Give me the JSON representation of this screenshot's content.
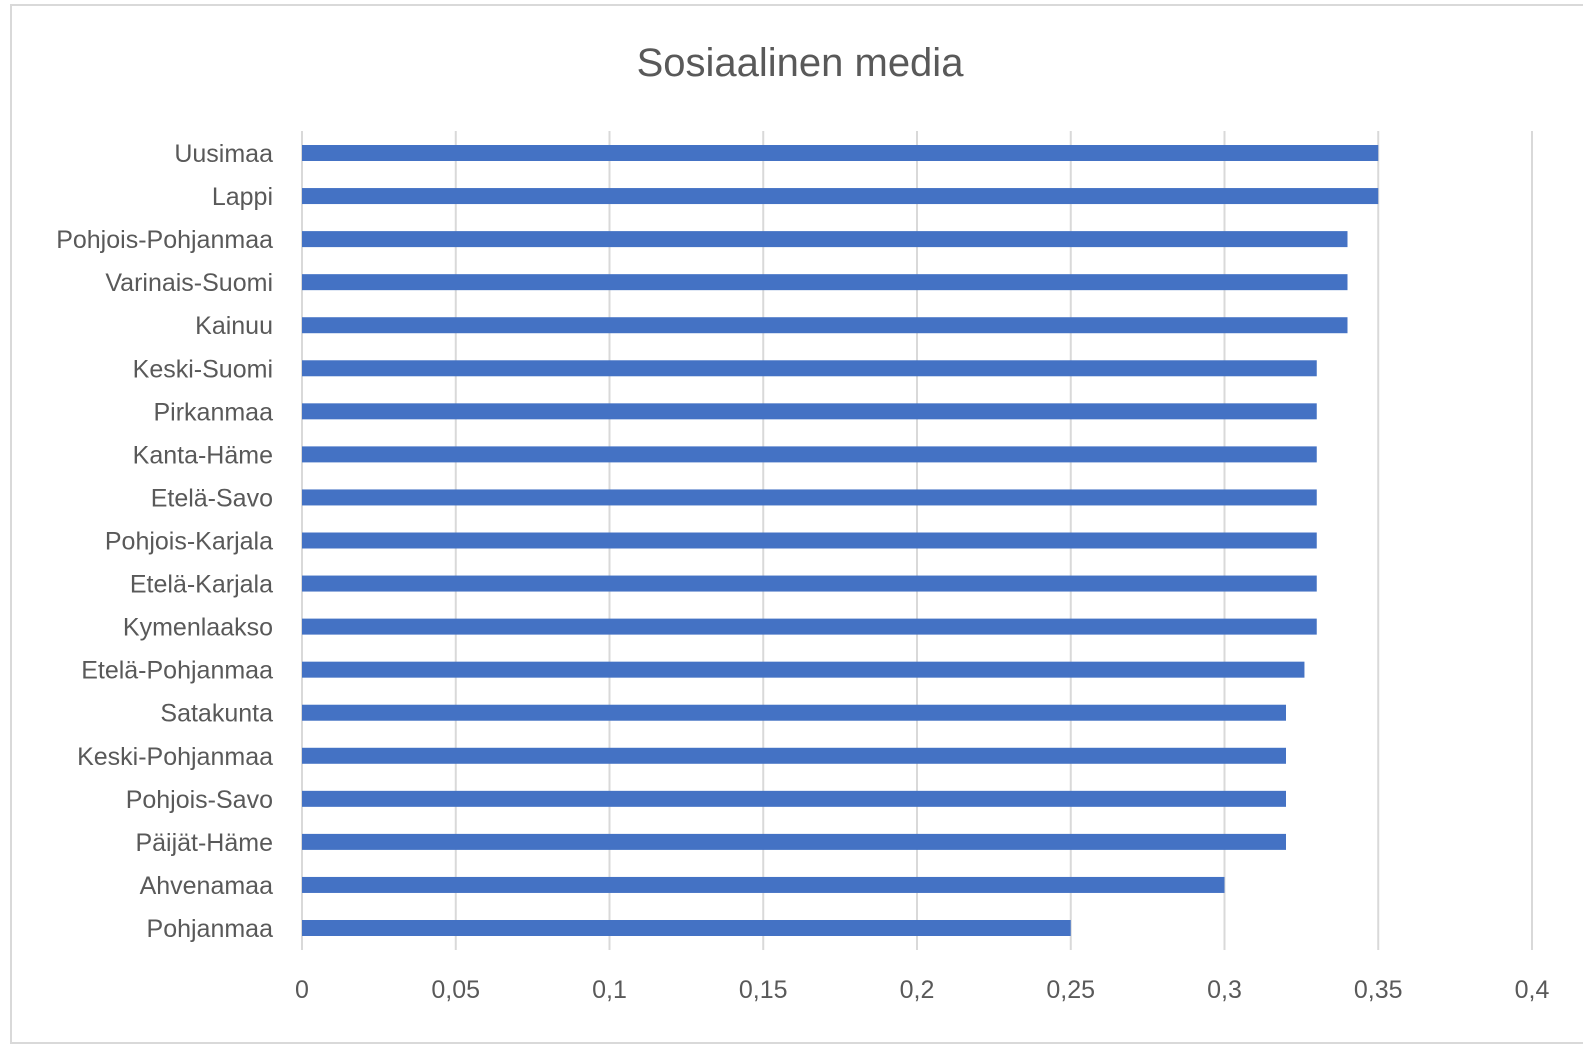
{
  "chart_data": {
    "type": "bar",
    "orientation": "horizontal",
    "title": "Sosiaalinen media",
    "xlabel": "",
    "ylabel": "",
    "categories": [
      "Uusimaa",
      "Lappi",
      "Pohjois-Pohjanmaa",
      "Varinais-Suomi",
      "Kainuu",
      "Keski-Suomi",
      "Pirkanmaa",
      "Kanta-Häme",
      "Etelä-Savo",
      "Pohjois-Karjala",
      "Etelä-Karjala",
      "Kymenlaakso",
      "Etelä-Pohjanmaa",
      "Satakunta",
      "Keski-Pohjanmaa",
      "Pohjois-Savo",
      "Päijät-Häme",
      "Ahvenamaa",
      "Pohjanmaa"
    ],
    "values": [
      0.35,
      0.35,
      0.34,
      0.34,
      0.34,
      0.33,
      0.33,
      0.33,
      0.33,
      0.33,
      0.33,
      0.33,
      0.326,
      0.32,
      0.32,
      0.32,
      0.32,
      0.3,
      0.25
    ],
    "xlim": [
      0,
      0.4
    ],
    "xticks": [
      0,
      0.05,
      0.1,
      0.15,
      0.2,
      0.25,
      0.3,
      0.35,
      0.4
    ],
    "xtick_labels": [
      "0",
      "0,05",
      "0,1",
      "0,15",
      "0,2",
      "0,25",
      "0,3",
      "0,35",
      "0,4"
    ],
    "grid": true,
    "legend": "none",
    "bar_color": "#4472c4"
  }
}
